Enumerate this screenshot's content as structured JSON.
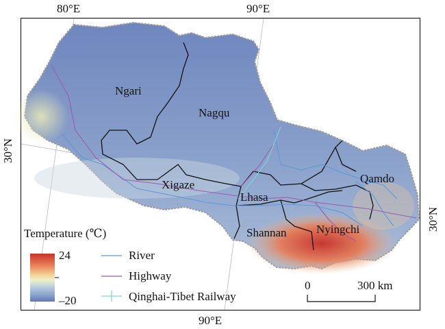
{
  "map": {
    "graticule": {
      "top": [
        "80°E",
        "90°E"
      ],
      "bottom": [
        "90°E"
      ],
      "left": [
        "30°N"
      ],
      "right": [
        "30°N"
      ]
    },
    "regions": [
      "Ngari",
      "Nagqu",
      "Xigaze",
      "Lhasa",
      "Qamdo",
      "Shannan",
      "Nyingchi"
    ],
    "legend": {
      "title": "Temperature (℃)",
      "max": "24",
      "min": "–20",
      "ramp_colors": [
        "#c8322a",
        "#e8825a",
        "#f3d49a",
        "#eef0c8",
        "#b9cde0",
        "#8fa6cd",
        "#5f79b4"
      ],
      "items": [
        {
          "label": "River",
          "color": "#5b9bd5",
          "icon": "line"
        },
        {
          "label": "Highway",
          "color": "#9b5bb0",
          "icon": "line"
        },
        {
          "label": "Qinghai-Tibet Railway",
          "color": "#7fd4d4",
          "icon": "rail-cross"
        }
      ]
    },
    "scale": {
      "zero": "0",
      "end": "300 km"
    }
  }
}
